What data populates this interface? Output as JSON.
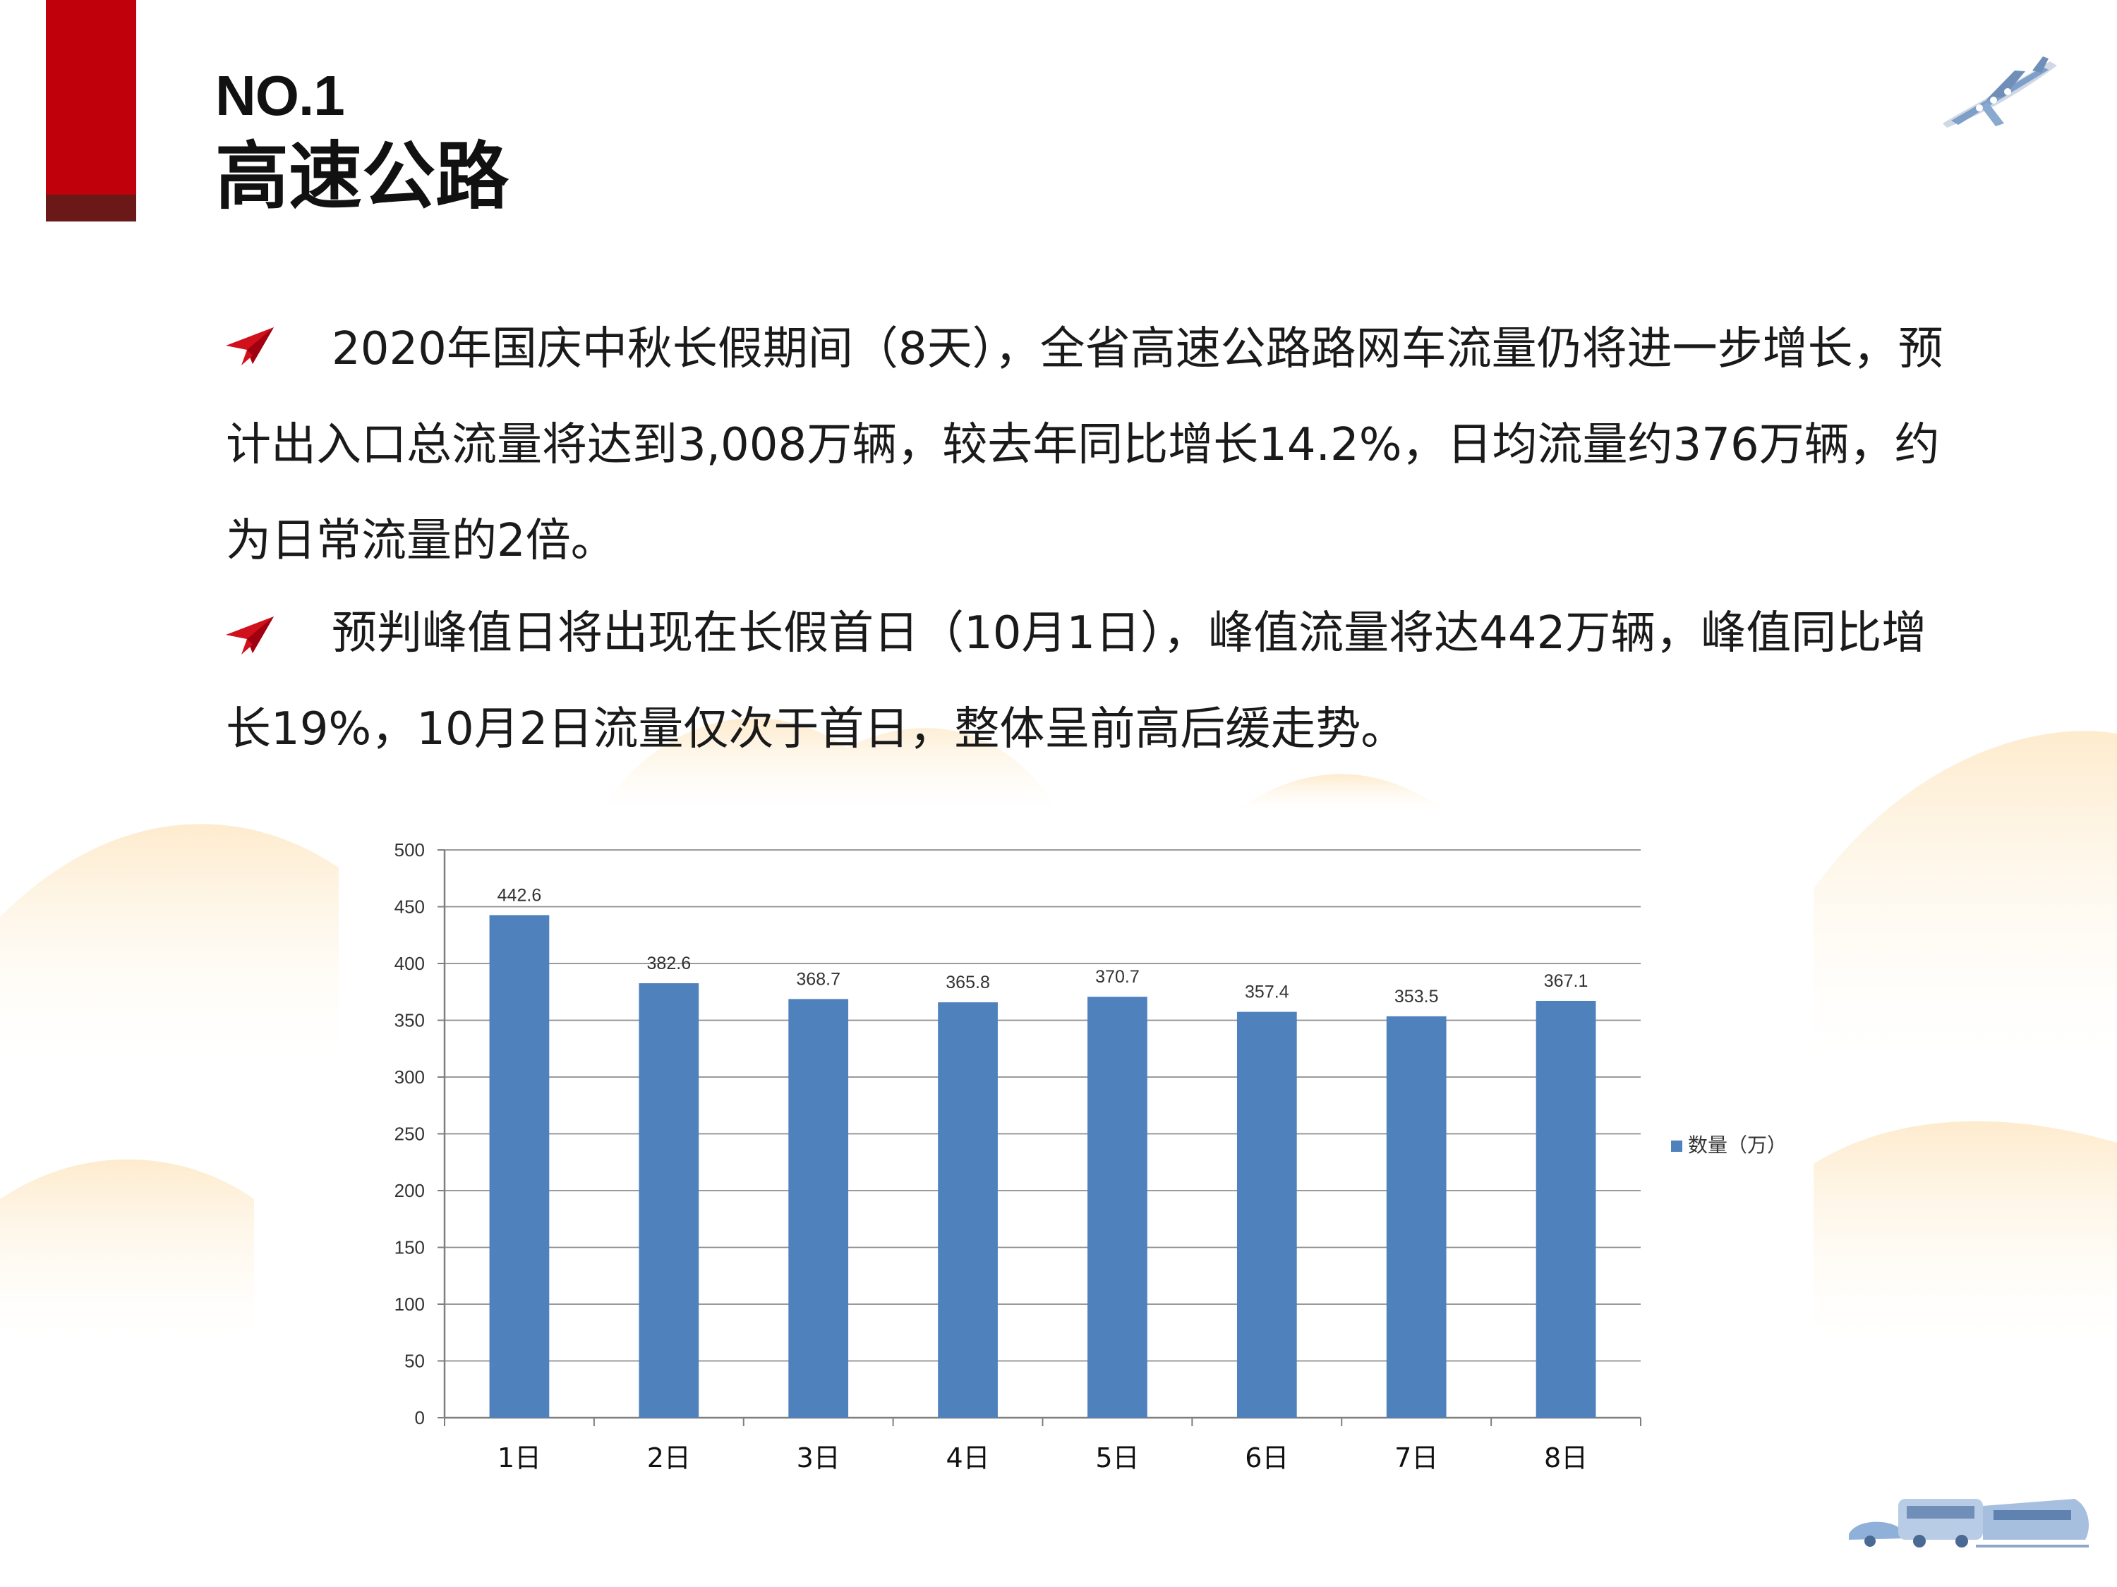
{
  "header": {
    "number": "NO.1",
    "title": "高速公路"
  },
  "icons": {
    "corner_top_right": "airplane-icon",
    "bullet": "paper-plane-icon",
    "corner_bottom_right": "vehicles-icon"
  },
  "colors": {
    "brand_red": "#c0000b",
    "brand_red_dark": "#6b1818",
    "bar": "#4f81bd"
  },
  "paragraphs": [
    "2020年国庆中秋长假期间（8天），全省高速公路路网车流量仍将进一步增长，预计出入口总流量将达到3,008万辆，较去年同比增长14.2%，日均流量约376万辆，约为日常流量的2倍。",
    "预判峰值日将出现在长假首日（10月1日），峰值流量将达442万辆，峰值同比增长19%，10月2日流量仅次于首日，整体呈前高后缓走势。"
  ],
  "chart_data": {
    "type": "bar",
    "categories": [
      "1日",
      "2日",
      "3日",
      "4日",
      "5日",
      "6日",
      "7日",
      "8日"
    ],
    "series": [
      {
        "name": "数量（万）",
        "values": [
          442.6,
          382.6,
          368.7,
          365.8,
          370.7,
          357.4,
          353.5,
          367.1
        ]
      }
    ],
    "ylim": [
      0,
      500
    ],
    "yticks": [
      0,
      50,
      100,
      150,
      200,
      250,
      300,
      350,
      400,
      450,
      500
    ],
    "data_labels": true,
    "grid": true,
    "legend_position": "right"
  }
}
